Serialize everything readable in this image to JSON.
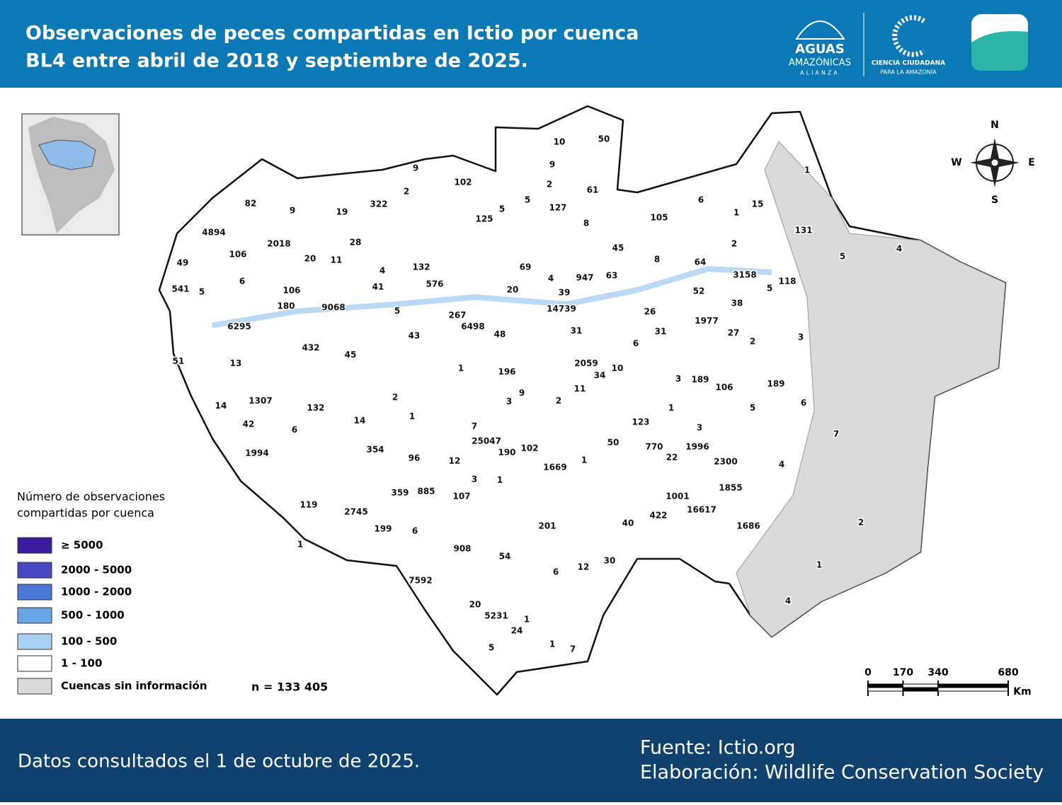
{
  "header": {
    "title_lines": [
      "Observaciones de peces compartidas en Ictio por cuenca",
      "BL4 entre abril de 2018 y septiembre de 2025."
    ],
    "logos": {
      "aguas": "AGUAS",
      "amazonicas": "AMAZÓNICAS",
      "alianza": "ALIANZA",
      "ciencia": "CIENCIA CIUDADANA",
      "para": "PARA LA AMAZONÍA"
    }
  },
  "map": {
    "basins": [
      10,
      50,
      9,
      102,
      9,
      1,
      2,
      2,
      61,
      82,
      9,
      19,
      322,
      5,
      5,
      127,
      6,
      1,
      15,
      105,
      125,
      8,
      4894,
      131,
      2018,
      28,
      45,
      2,
      5,
      4,
      106,
      20,
      11,
      8,
      64,
      49,
      132,
      69,
      4,
      4,
      947,
      63,
      3158,
      118,
      6,
      541,
      5,
      41,
      576,
      20,
      39,
      52,
      5,
      106,
      180,
      9068,
      38,
      14739,
      26,
      5,
      267,
      6498,
      1977,
      6295,
      31,
      27,
      43,
      48,
      31,
      3,
      6,
      2,
      432,
      45,
      51,
      13,
      1,
      196,
      2059,
      34,
      10,
      11,
      3,
      189,
      106,
      189,
      9,
      2,
      3,
      2,
      1307,
      14,
      132,
      1,
      5,
      6,
      14,
      1,
      42,
      6,
      7,
      123,
      3,
      7,
      25047,
      190,
      102,
      354,
      1994,
      50,
      770,
      1996,
      96,
      12,
      1,
      22,
      2300,
      4,
      1669,
      3,
      1,
      359,
      885,
      107,
      1855,
      1001,
      16617,
      119,
      2745,
      422,
      199,
      6,
      201,
      40,
      1686,
      2,
      1,
      908,
      54,
      30,
      6,
      12,
      1,
      7592,
      20,
      4,
      5231,
      1,
      24,
      5,
      1,
      7
    ],
    "compass": {
      "n": "N",
      "s": "S",
      "e": "E",
      "w": "W"
    },
    "legend": {
      "title_lines": [
        "Número de observaciones",
        "compartidas por cuenca"
      ],
      "items": [
        {
          "label": "≥ 5000",
          "color": "#3b1c9e"
        },
        {
          "label": "2000 - 5000",
          "color": "#4845c0"
        },
        {
          "label": "1000 - 2000",
          "color": "#4a78d8"
        },
        {
          "label": "500 - 1000",
          "color": "#6aa5e8"
        },
        {
          "label": "100 - 500",
          "color": "#a8d0f2"
        },
        {
          "label": "1 - 100",
          "color": "#ffffff"
        },
        {
          "label": "Cuencas sin información",
          "color": "#dadada"
        }
      ]
    },
    "total": "n = 133 405",
    "scale": {
      "ticks": [
        0,
        170,
        340,
        680
      ],
      "unit": "Km"
    }
  },
  "footer": {
    "date": "Datos consultados el 1 de octubre de 2025.",
    "source": "Fuente: Ictio.org",
    "credit": "Elaboración: Wildlife Conservation Society"
  }
}
